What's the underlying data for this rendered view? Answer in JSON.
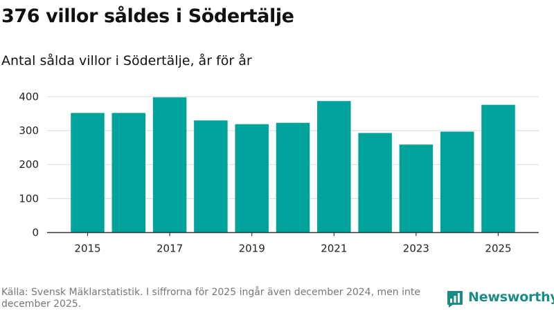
{
  "title": "376 villor såldes i Södertälje",
  "subtitle": "Antal sålda villor i Södertälje, år för år",
  "source": "Källa: Svensk Mäklarstatistik. I siffrorna för 2025 ingår även december 2024, men inte december 2025.",
  "brand": {
    "name": "Newsworthy",
    "icon": "newsworthy-logo-icon"
  },
  "colors": {
    "bar": "#00a39b",
    "grid": "#dddddd",
    "axis": "#333333",
    "text": "#222222",
    "brand": "#1a8c85"
  },
  "chart_data": {
    "type": "bar",
    "title": "Antal sålda villor i Södertälje, år för år",
    "xlabel": "",
    "ylabel": "",
    "categories": [
      "2015",
      "2016",
      "2017",
      "2018",
      "2019",
      "2020",
      "2021",
      "2022",
      "2023",
      "2024",
      "2025"
    ],
    "values": [
      352,
      352,
      398,
      330,
      319,
      323,
      387,
      293,
      259,
      297,
      376
    ],
    "xticks": [
      "2015",
      "2017",
      "2019",
      "2021",
      "2023",
      "2025"
    ],
    "yticks": [
      0,
      100,
      200,
      300,
      400
    ],
    "ylim": [
      0,
      420
    ],
    "grid": true,
    "legend": "none"
  }
}
